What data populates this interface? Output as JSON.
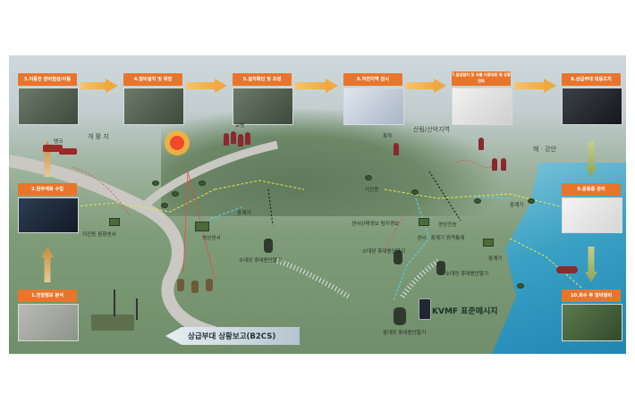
{
  "steps": [
    {
      "label": "1.전장정보 분석"
    },
    {
      "label": "2.임무계획 수립"
    },
    {
      "label": "3.이동전 장비점검/이동"
    },
    {
      "label": "4.장비설치 및 위장"
    },
    {
      "label": "5.설치확인 및 조정"
    },
    {
      "label": "6.작전지역 감시"
    },
    {
      "label": "7.침입탐지 및 식별 다중대응 및 상황전파"
    },
    {
      "label": "8.상급부대 대응조치"
    },
    {
      "label": "9.운용중 관리"
    },
    {
      "label": "10.회수 후 장비정비"
    }
  ],
  "terrain": {
    "open_land": "개 활 지",
    "forest": "산림/산악지역",
    "coast": "해 · 강안"
  },
  "labels": {
    "tank": "탱크",
    "infantry": "보병",
    "special_forces": "특작",
    "area_sensor_site": "지진동",
    "seismic_sensor": "지진동",
    "acoustic_sensor": "음향센서",
    "seismic_acoustic": "지진동  음향센서",
    "image_sensor": "영상센서",
    "relay_1": "중계기",
    "relay_2": "중계기",
    "relay_3": "중계기",
    "small_terminal_1": "소대장 휴대용단말기",
    "small_terminal_2": "소대장 휴대용단말기",
    "small_terminal_3": "소대장 휴대용단말기",
    "sensor_status": "센서상태정보 탐지경보",
    "image_capture": "영상전송",
    "sensor_relay": "센서 · 중계기 원격통제",
    "company_terminal": "중대장 휴대용단말기"
  },
  "messages": {
    "kvmf": "KVMF 표준메시지",
    "b2cs": "상급부대 상황보고(B2CS)"
  }
}
